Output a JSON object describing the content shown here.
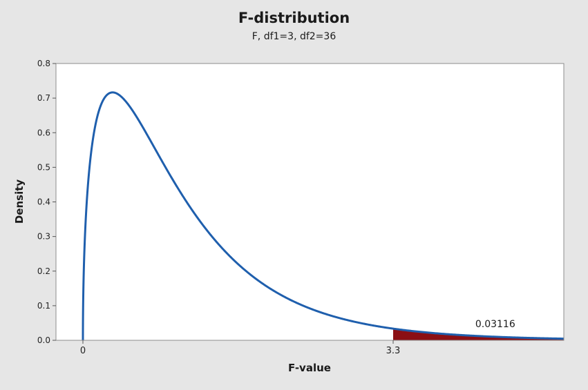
{
  "chart_data": {
    "type": "area",
    "title": "F-distribution",
    "subtitle": "F, df1=3, df2=36",
    "xlabel": "F-value",
    "ylabel": "Density",
    "distribution": {
      "name": "F",
      "df1": 3,
      "df2": 36
    },
    "xlim": [
      0,
      6.5
    ],
    "ylim": [
      0,
      0.8
    ],
    "yticks": [
      0.0,
      0.1,
      0.2,
      0.3,
      0.4,
      0.5,
      0.6,
      0.7,
      0.8
    ],
    "ytick_labels": [
      "0.0",
      "0.1",
      "0.2",
      "0.3",
      "0.4",
      "0.5",
      "0.6",
      "0.7",
      "0.8"
    ],
    "xticks": [
      0,
      3.3
    ],
    "xtick_labels": [
      "0",
      "3.3"
    ],
    "grid": false,
    "series": [
      {
        "x": [
          0,
          0.02,
          0.05,
          0.1,
          0.15,
          0.2,
          0.25,
          0.3,
          0.4,
          0.5,
          0.6,
          0.7,
          0.8,
          1.0,
          1.2,
          1.4,
          1.6,
          1.8,
          2.0,
          2.5,
          3.0,
          3.3,
          4.0,
          5.0,
          6.0,
          6.5
        ],
        "y": [
          0.0,
          0.306,
          0.461,
          0.582,
          0.646,
          0.684,
          0.706,
          0.717,
          0.716,
          0.692,
          0.655,
          0.611,
          0.564,
          0.47,
          0.385,
          0.311,
          0.25,
          0.2,
          0.159,
          0.089,
          0.05,
          0.036,
          0.017,
          0.0065,
          0.0025,
          0.0016
        ]
      }
    ],
    "shaded_region": {
      "from": 3.3,
      "to": 6.5,
      "area": 0.03116
    },
    "annotations": [
      {
        "text": "0.03116",
        "x": 4.1,
        "y": 0.038
      }
    ],
    "colors": {
      "curve": "#1f5fad",
      "fill": "#8b0f14",
      "axis": "#8c8c8c",
      "background": "#e6e6e6",
      "plot_bg": "#ffffff"
    }
  }
}
